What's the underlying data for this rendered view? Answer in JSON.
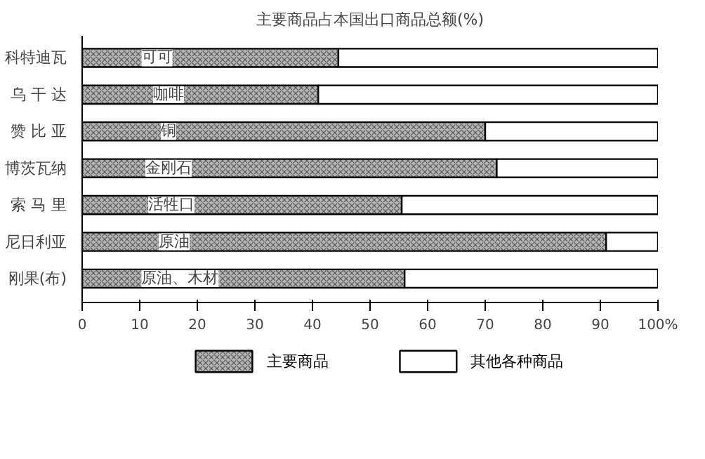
{
  "chart_data": {
    "type": "bar",
    "orientation": "horizontal",
    "stacked": true,
    "title": "主要商品占本国出口商品总额(%)",
    "categories": [
      "科特迪瓦",
      "乌 干 达",
      "赞 比 亚",
      "博茨瓦纳",
      "索 马 里",
      "尼日利亚",
      "刚果(布)"
    ],
    "series": [
      {
        "name": "主要商品",
        "color": "#b4b4b4",
        "values": [
          44.5,
          41,
          70,
          72,
          55.5,
          91,
          56
        ]
      },
      {
        "name": "其他各种商品",
        "color": "#ffffff",
        "values": [
          55.5,
          59,
          30,
          28,
          44.5,
          9,
          44
        ]
      }
    ],
    "xlim": [
      0,
      100
    ],
    "xticks": [
      0,
      10,
      20,
      30,
      40,
      50,
      60,
      70,
      80,
      90,
      {
        "value": 100,
        "label": "100%"
      }
    ],
    "grid": false,
    "legend": "bottom",
    "annotations": [
      {
        "text": "可可",
        "x": 13,
        "y": "科特迪瓦"
      },
      {
        "text": "咖啡",
        "x": 15,
        "y": "乌 干 达"
      },
      {
        "text": "铜",
        "x": 15,
        "y": "赞 比 亚"
      },
      {
        "text": "金刚石",
        "x": 15,
        "y": "博茨瓦纳"
      },
      {
        "text": "活牲口",
        "x": 15.5,
        "y": "索 马 里"
      },
      {
        "text": "原油",
        "x": 16,
        "y": "尼日利亚"
      },
      {
        "text": "原油、木材",
        "x": 17,
        "y": "刚果(布)"
      }
    ]
  }
}
